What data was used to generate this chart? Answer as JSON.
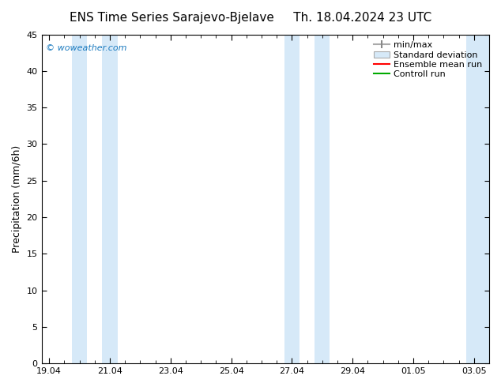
{
  "title_left": "ENS Time Series Sarajevo-Bjelave",
  "title_right": "Th. 18.04.2024 23 UTC",
  "ylabel": "Precipitation (mm/6h)",
  "watermark": "© woweather.com",
  "ylim": [
    0,
    45
  ],
  "yticks": [
    0,
    5,
    10,
    15,
    20,
    25,
    30,
    35,
    40,
    45
  ],
  "x_start_date": "19.04",
  "x_end_date": "03.05",
  "x_tick_labels": [
    "19.04",
    "21.04",
    "23.04",
    "25.04",
    "27.04",
    "29.04",
    "01.05",
    "03.05"
  ],
  "x_tick_positions": [
    0.0,
    2.0,
    4.0,
    6.0,
    8.0,
    10.0,
    12.0,
    14.0
  ],
  "x_min": -0.25,
  "x_max": 14.5,
  "shaded_regions": [
    {
      "x_start": 0.75,
      "x_end": 1.25,
      "color": "#d6e9f8"
    },
    {
      "x_start": 1.75,
      "x_end": 2.25,
      "color": "#d6e9f8"
    },
    {
      "x_start": 7.75,
      "x_end": 8.25,
      "color": "#d6e9f8"
    },
    {
      "x_start": 8.75,
      "x_end": 9.25,
      "color": "#d6e9f8"
    },
    {
      "x_start": 13.75,
      "x_end": 14.5,
      "color": "#d6e9f8"
    }
  ],
  "background_color": "#ffffff",
  "plot_bg_color": "#ffffff",
  "legend_labels": [
    "min/max",
    "Standard deviation",
    "Ensemble mean run",
    "Controll run"
  ],
  "ensemble_mean_color": "#ff0000",
  "control_run_color": "#00aa00",
  "minmax_color": "#aaaaaa",
  "std_color": "#d6e9f8",
  "title_fontsize": 11,
  "axis_fontsize": 9,
  "tick_fontsize": 8,
  "legend_fontsize": 8
}
